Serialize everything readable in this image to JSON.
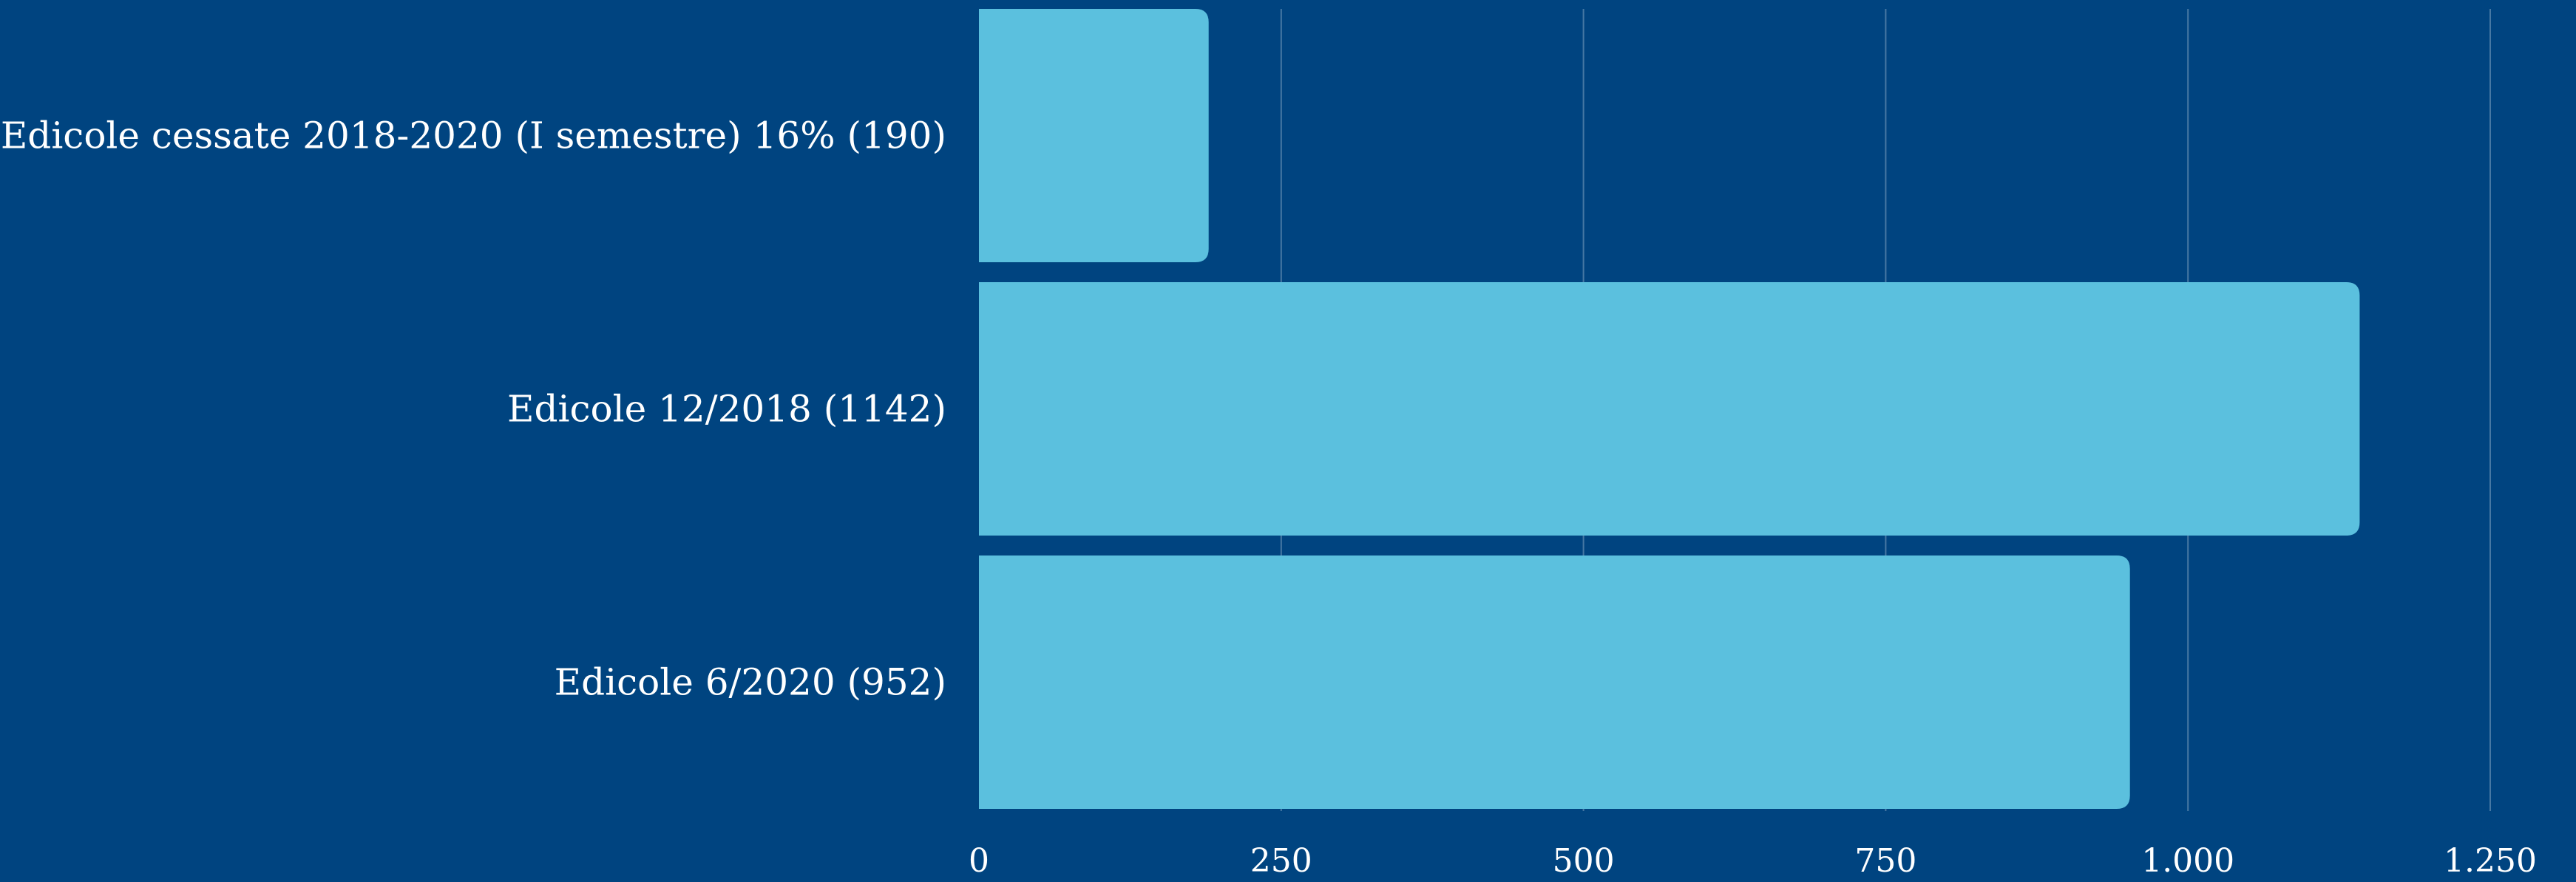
{
  "colors": {
    "background": "#004480",
    "bar": "#5bc0de",
    "text": "#ffffff",
    "grid": "#ffffff"
  },
  "chart_data": {
    "type": "bar",
    "orientation": "horizontal",
    "categories": [
      "Edicole cessate 2018-2020 (I semestre) 16% (190)",
      "Edicole 12/2018 (1142)",
      "Edicole 6/2020 (952)"
    ],
    "values": [
      190,
      1142,
      952
    ],
    "xlim": [
      0,
      1250
    ],
    "xticks": [
      0,
      250,
      500,
      750,
      1000,
      1250
    ],
    "xtick_labels": [
      "0",
      "250",
      "500",
      "750",
      "1.000",
      "1.250"
    ],
    "grid": "vertical",
    "legend": "none",
    "title": "",
    "xlabel": "",
    "ylabel": ""
  }
}
